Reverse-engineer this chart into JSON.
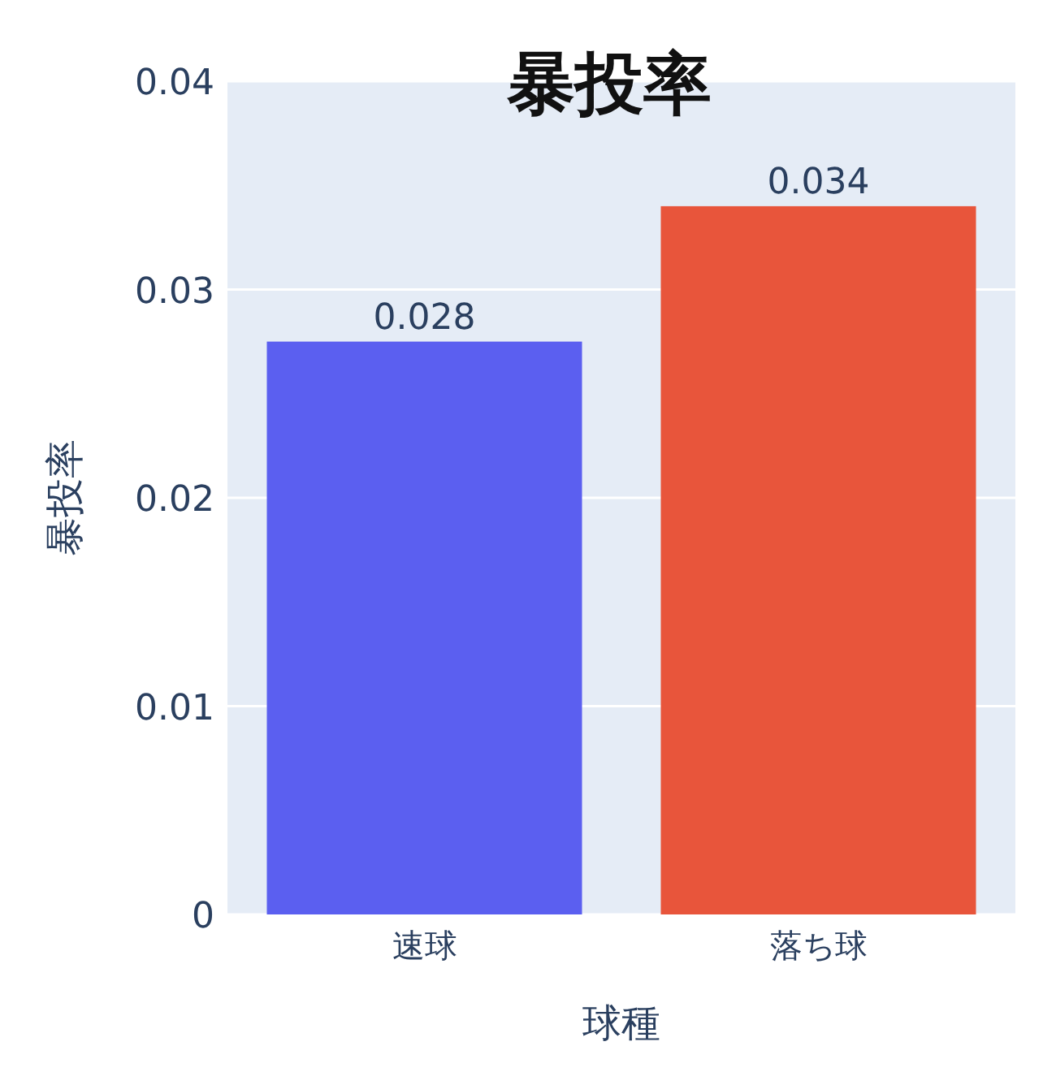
{
  "chart_data": {
    "type": "bar",
    "title": "暴投率",
    "xlabel": "球種",
    "ylabel": "暴投率",
    "categories": [
      "速球",
      "落ち球"
    ],
    "values": [
      0.0275,
      0.034
    ],
    "colors": [
      "#5b5ff0",
      "#e8553b"
    ],
    "value_labels": [
      "0.028",
      "0.034"
    ],
    "ylim": [
      0,
      0.04
    ],
    "yticks": [
      0,
      0.01,
      0.02,
      0.03,
      0.04
    ],
    "grid": "y"
  }
}
